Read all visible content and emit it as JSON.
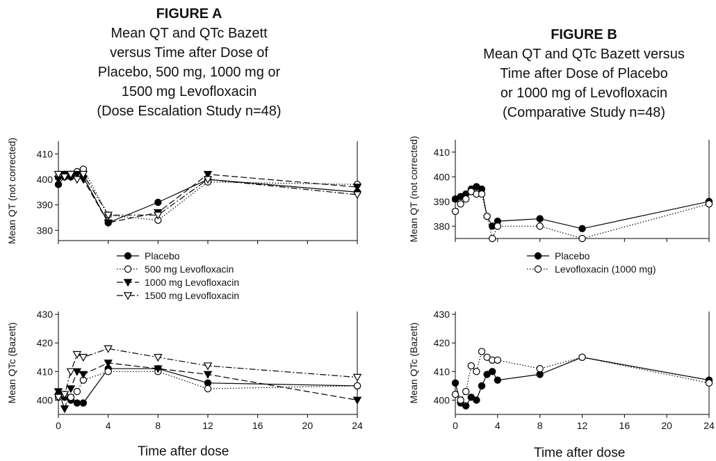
{
  "figure_a": {
    "heading": "FIGURE A",
    "lines": [
      "Mean QT and QTc Bazett",
      "versus Time after Dose of",
      "Placebo, 500 mg, 1000 mg or",
      "1500 mg Levofloxacin",
      "(Dose Escalation Study n=48)"
    ]
  },
  "figure_b": {
    "heading": "FIGURE B",
    "lines": [
      "Mean QT and QTc Bazett versus",
      "Time after Dose of Placebo",
      "or 1000 mg of Levofloxacin",
      "(Comparative Study n=48)"
    ]
  },
  "chart_data": [
    {
      "type": "line",
      "panel": "A-top",
      "ylabel": "Mean QT (not corrected)",
      "ylim": [
        376,
        415
      ],
      "yticks": [
        380,
        390,
        400,
        410
      ],
      "xlim": [
        0,
        24
      ],
      "xticks": [
        0,
        4,
        8,
        12,
        16,
        20,
        24
      ],
      "show_xticklabels": false,
      "series": [
        {
          "name": "Placebo",
          "marker": "filled-circle",
          "line": "solid",
          "color": "#000000",
          "x": [
            0,
            0.5,
            1,
            1.5,
            2,
            4,
            8,
            12,
            24
          ],
          "y": [
            398,
            401,
            401,
            403,
            401,
            383,
            391,
            400,
            395
          ]
        },
        {
          "name": "500 mg Levofloxacin",
          "marker": "open-circle",
          "line": "dotted",
          "color": "#000000",
          "x": [
            0,
            0.5,
            1,
            1.5,
            2,
            4,
            8,
            12,
            24
          ],
          "y": [
            401,
            402,
            402,
            403,
            404,
            386,
            384,
            399,
            398
          ]
        },
        {
          "name": "1000 mg Levofloxacin",
          "marker": "filled-triangle-down",
          "line": "dashed",
          "color": "#000000",
          "x": [
            0,
            0.5,
            1,
            1.5,
            2,
            4,
            8,
            12,
            24
          ],
          "y": [
            400,
            402,
            401,
            402,
            400,
            383,
            387,
            402,
            397
          ]
        },
        {
          "name": "1500 mg Levofloxacin",
          "marker": "open-triangle-down",
          "line": "dash-dot",
          "color": "#000000",
          "x": [
            0,
            0.5,
            1,
            1.5,
            2,
            4,
            8,
            12,
            24
          ],
          "y": [
            402,
            401,
            402,
            400,
            402,
            386,
            386,
            400,
            394
          ]
        }
      ]
    },
    {
      "type": "line",
      "panel": "A-bottom",
      "ylabel": "Mean QTc (Bazett)",
      "xlabel": "Time after dose",
      "ylim": [
        395,
        431
      ],
      "yticks": [
        400,
        410,
        420,
        430
      ],
      "xlim": [
        0,
        24
      ],
      "xticks": [
        0,
        4,
        8,
        12,
        16,
        20,
        24
      ],
      "xticklabels": [
        "0",
        "4",
        "8",
        "12",
        "16",
        "20",
        "24"
      ],
      "series": [
        {
          "name": "Placebo",
          "marker": "filled-circle",
          "line": "solid",
          "color": "#000000",
          "x": [
            0,
            0.5,
            1,
            1.5,
            2,
            4,
            8,
            12,
            24
          ],
          "y": [
            402,
            401,
            400,
            399,
            399,
            411,
            411,
            406,
            405
          ]
        },
        {
          "name": "500 mg Levofloxacin",
          "marker": "open-circle",
          "line": "dotted",
          "color": "#000000",
          "x": [
            0,
            0.5,
            1,
            1.5,
            2,
            4,
            8,
            12,
            24
          ],
          "y": [
            401,
            402,
            401,
            403,
            407,
            410,
            410,
            404,
            405
          ]
        },
        {
          "name": "1000 mg Levofloxacin",
          "marker": "filled-triangle-down",
          "line": "dashed",
          "color": "#000000",
          "x": [
            0,
            0.5,
            1,
            1.5,
            2,
            4,
            8,
            12,
            24
          ],
          "y": [
            403,
            397,
            404,
            410,
            409,
            413,
            411,
            409,
            400
          ]
        },
        {
          "name": "1500 mg Levofloxacin",
          "marker": "open-triangle-down",
          "line": "dash-dot",
          "color": "#000000",
          "x": [
            0,
            0.5,
            1,
            1.5,
            2,
            4,
            8,
            12,
            24
          ],
          "y": [
            401,
            402,
            410,
            416,
            415,
            418,
            415,
            412,
            408
          ]
        }
      ]
    },
    {
      "type": "line",
      "panel": "B-top",
      "ylabel": "Mean QT (not corrected)",
      "ylim": [
        375,
        415
      ],
      "yticks": [
        380,
        390,
        400,
        410
      ],
      "xlim": [
        0,
        24
      ],
      "xticks": [
        0,
        4,
        8,
        12,
        16,
        20,
        24
      ],
      "show_xticklabels": false,
      "series": [
        {
          "name": "Placebo",
          "marker": "filled-circle",
          "line": "solid",
          "color": "#000000",
          "x": [
            0,
            0.5,
            1,
            1.5,
            2,
            2.5,
            3,
            3.5,
            4,
            8,
            12,
            24
          ],
          "y": [
            391,
            392,
            393,
            395,
            396,
            395,
            384,
            380,
            382,
            383,
            379,
            390
          ]
        },
        {
          "name": "Levofloxacin (1000 mg)",
          "marker": "open-circle",
          "line": "dotted",
          "color": "#000000",
          "x": [
            0,
            0.5,
            1,
            1.5,
            2,
            2.5,
            3,
            3.5,
            4,
            8,
            12,
            24
          ],
          "y": [
            386,
            389,
            391,
            394,
            393,
            393,
            384,
            375,
            380,
            380,
            375,
            389
          ]
        }
      ]
    },
    {
      "type": "line",
      "panel": "B-bottom",
      "ylabel": "Mean QTc (Bazett)",
      "xlabel": "Time after dose",
      "ylim": [
        395,
        431
      ],
      "yticks": [
        400,
        410,
        420,
        430
      ],
      "xlim": [
        0,
        24
      ],
      "xticks": [
        0,
        4,
        8,
        12,
        16,
        20,
        24
      ],
      "xticklabels": [
        "0",
        "4",
        "8",
        "12",
        "16",
        "20",
        "24"
      ],
      "series": [
        {
          "name": "Placebo",
          "marker": "filled-circle",
          "line": "solid",
          "color": "#000000",
          "x": [
            0,
            0.5,
            1,
            1.5,
            2,
            2.5,
            3,
            3.5,
            4,
            8,
            12,
            24
          ],
          "y": [
            406,
            399,
            398,
            401,
            400,
            405,
            409,
            410,
            407,
            409,
            415,
            407
          ]
        },
        {
          "name": "Levofloxacin (1000 mg)",
          "marker": "open-circle",
          "line": "dotted",
          "color": "#000000",
          "x": [
            0,
            0.5,
            1,
            1.5,
            2,
            2.5,
            3,
            3.5,
            4,
            8,
            12,
            24
          ],
          "y": [
            402,
            400,
            403,
            412,
            410,
            417,
            415,
            414,
            414,
            411,
            415,
            406
          ]
        }
      ]
    }
  ]
}
